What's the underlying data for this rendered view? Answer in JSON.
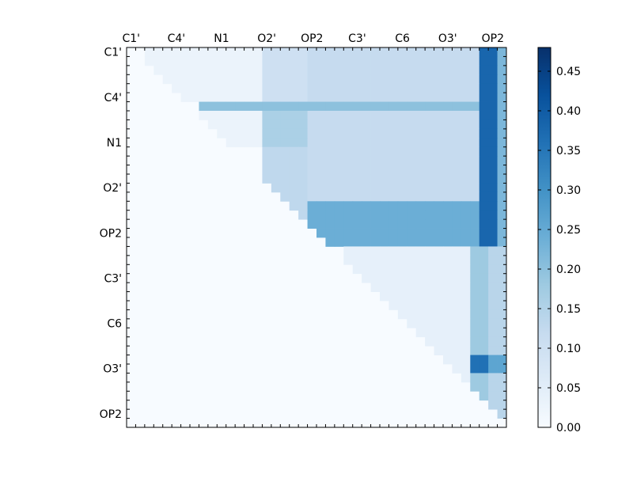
{
  "chart_data": {
    "type": "heatmap",
    "title": "",
    "xlabel": "",
    "ylabel": "",
    "n": 42,
    "matrix_shape": "upper-triangular",
    "x_tick_labels": [
      "C1'",
      "C4'",
      "N1",
      "O2'",
      "OP2",
      "C3'",
      "C6",
      "O3'",
      "OP2"
    ],
    "y_tick_labels": [
      "C1'",
      "C4'",
      "N1",
      "O2'",
      "OP2",
      "C3'",
      "C6",
      "O3'",
      "OP2"
    ],
    "x_tick_label_position": "top",
    "colormap": "Blues",
    "colormap_stops": [
      "#f7fbff",
      "#deebf7",
      "#c6dbef",
      "#9ecae1",
      "#6baed6",
      "#4292c6",
      "#2171b5",
      "#08519c",
      "#08306b"
    ],
    "colorbar": {
      "min": 0.0,
      "max": 0.48,
      "ticks": [
        0.0,
        0.05,
        0.1,
        0.15,
        0.2,
        0.25,
        0.3,
        0.35,
        0.4,
        0.45
      ],
      "tick_labels": [
        "0.00",
        "0.05",
        "0.10",
        "0.15",
        "0.20",
        "0.25",
        "0.30",
        "0.35",
        "0.40",
        "0.45"
      ]
    },
    "blocks": [
      {
        "rows": [
          0,
          6
        ],
        "cols": [
          2,
          15
        ],
        "value": 0.03
      },
      {
        "rows": [
          0,
          6
        ],
        "cols": [
          15,
          20
        ],
        "value": 0.1
      },
      {
        "rows": [
          0,
          6
        ],
        "cols": [
          20,
          39
        ],
        "value": 0.12
      },
      {
        "rows": [
          7,
          11
        ],
        "cols": [
          7,
          15
        ],
        "value": 0.03
      },
      {
        "rows": [
          7,
          11
        ],
        "cols": [
          15,
          20
        ],
        "value": 0.16
      },
      {
        "rows": [
          7,
          11
        ],
        "cols": [
          20,
          39
        ],
        "value": 0.12
      },
      {
        "rows": [
          6,
          7
        ],
        "cols": [
          8,
          39
        ],
        "value": 0.2
      },
      {
        "rows": [
          11,
          19
        ],
        "cols": [
          15,
          20
        ],
        "value": 0.13
      },
      {
        "rows": [
          11,
          19
        ],
        "cols": [
          20,
          39
        ],
        "value": 0.12
      },
      {
        "rows": [
          17,
          22
        ],
        "cols": [
          20,
          39
        ],
        "value": 0.24
      },
      {
        "rows": [
          22,
          37
        ],
        "cols": [
          24,
          38
        ],
        "value": 0.04
      },
      {
        "rows": [
          22,
          42
        ],
        "cols": [
          38,
          40
        ],
        "value": 0.18
      },
      {
        "rows": [
          0,
          22
        ],
        "cols": [
          39,
          41
        ],
        "value": 0.38
      },
      {
        "rows": [
          0,
          22
        ],
        "cols": [
          41,
          42
        ],
        "value": 0.22
      },
      {
        "rows": [
          22,
          42
        ],
        "cols": [
          40,
          42
        ],
        "value": 0.14
      },
      {
        "rows": [
          34,
          36
        ],
        "cols": [
          38,
          40
        ],
        "value": 0.36
      },
      {
        "rows": [
          34,
          36
        ],
        "cols": [
          40,
          42
        ],
        "value": 0.26
      }
    ]
  }
}
